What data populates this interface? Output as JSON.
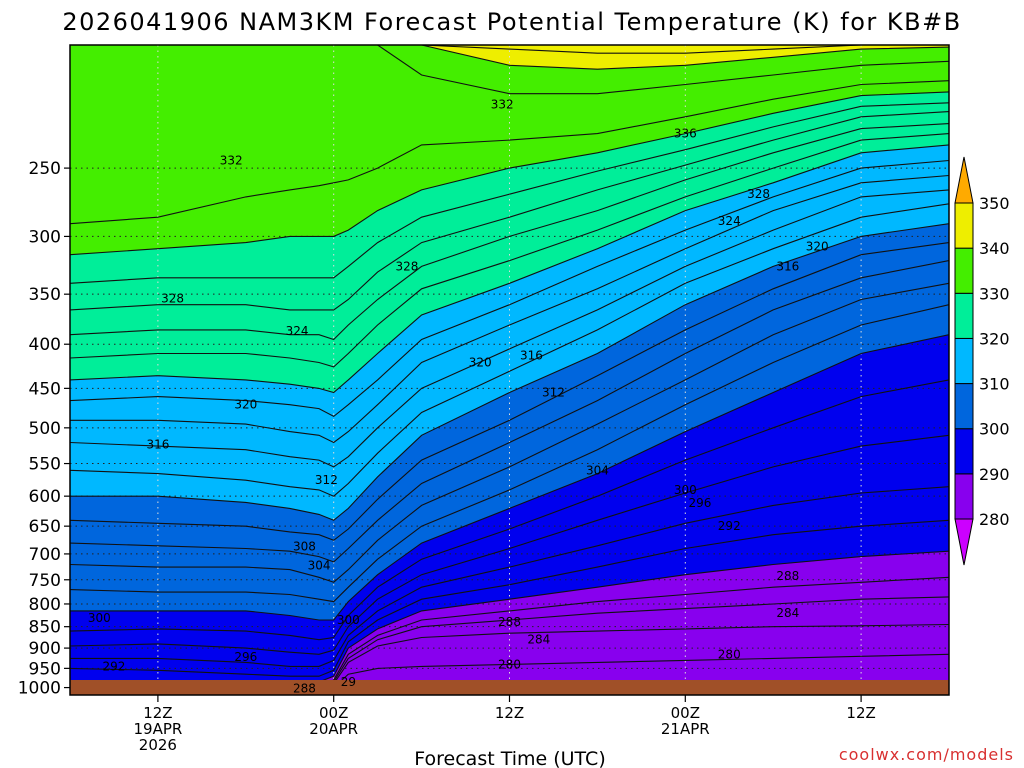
{
  "chart_data": {
    "type": "heatmap",
    "title": "2026041906 NAM3KM Forecast Potential Temperature (K) for KB#B",
    "xlabel": "Forecast Time (UTC)",
    "ylabel": "",
    "credit": "coolwx.com/models",
    "x_unit": "hours since 2026-04-19 06Z",
    "xlim": [
      0,
      60
    ],
    "y_unit": "hPa",
    "ylim": [
      1020,
      180
    ],
    "y_scale": "log-pressure",
    "y_ticks": [
      250,
      300,
      350,
      400,
      450,
      500,
      550,
      600,
      650,
      700,
      750,
      800,
      850,
      900,
      950,
      1000
    ],
    "y_tick_labels": [
      "250",
      "300",
      "350",
      "400",
      "450",
      "500",
      "550",
      "600",
      "650",
      "700",
      "750",
      "800",
      "850",
      "900",
      "950",
      "1000"
    ],
    "x_ticks": [
      {
        "hour": 6,
        "lines": [
          "12Z",
          "19APR",
          "2026"
        ]
      },
      {
        "hour": 18,
        "lines": [
          "00Z",
          "20APR"
        ]
      },
      {
        "hour": 30,
        "lines": [
          "12Z"
        ]
      },
      {
        "hour": 42,
        "lines": [
          "00Z",
          "21APR"
        ]
      },
      {
        "hour": 54,
        "lines": [
          "12Z"
        ]
      }
    ],
    "grid": "dotted",
    "colorbar": {
      "levels": [
        280,
        290,
        300,
        310,
        320,
        330,
        340,
        350
      ],
      "labels": [
        "280",
        "290",
        "300",
        "310",
        "320",
        "330",
        "340",
        "350"
      ],
      "colors": [
        "#cc00ff",
        "#8800ee",
        "#0000ee",
        "#0066dd",
        "#00b8ff",
        "#00ee99",
        "#44ee00",
        "#eeee00",
        "#ffaa00"
      ],
      "placement": "right",
      "extend": "both"
    },
    "contour_interval": 2,
    "time_hours": [
      0,
      6,
      12,
      15,
      17,
      18,
      19,
      21,
      24,
      30,
      36,
      42,
      48,
      54,
      60
    ],
    "isentrope_heights_hPa": [
      {
        "theta": 282,
        "p": [
          1020,
          1020,
          1020,
          1020,
          1020,
          1000,
          965,
          950,
          945,
          940,
          935,
          930,
          925,
          920,
          915
        ]
      },
      {
        "theta": 284,
        "p": [
          1020,
          1020,
          1020,
          1020,
          1020,
          990,
          935,
          895,
          875,
          865,
          860,
          855,
          850,
          848,
          845
        ]
      },
      {
        "theta": 286,
        "p": [
          1020,
          1020,
          1020,
          1020,
          1010,
          985,
          925,
          880,
          850,
          835,
          820,
          810,
          800,
          790,
          785
        ]
      },
      {
        "theta": 288,
        "p": [
          1020,
          1020,
          1010,
          1005,
          1000,
          980,
          915,
          870,
          835,
          815,
          795,
          780,
          765,
          755,
          745
        ]
      },
      {
        "theta": 290,
        "p": [
          1020,
          1005,
          990,
          985,
          985,
          970,
          900,
          855,
          815,
          790,
          765,
          740,
          720,
          705,
          695
        ]
      },
      {
        "theta": 292,
        "p": [
          950,
          955,
          965,
          970,
          970,
          955,
          885,
          835,
          790,
          760,
          725,
          690,
          665,
          650,
          640
        ]
      },
      {
        "theta": 294,
        "p": [
          925,
          925,
          935,
          945,
          945,
          930,
          870,
          815,
          765,
          725,
          685,
          645,
          615,
          595,
          585
        ]
      },
      {
        "theta": 296,
        "p": [
          895,
          890,
          900,
          910,
          915,
          905,
          850,
          790,
          740,
          690,
          640,
          595,
          555,
          525,
          510
        ]
      },
      {
        "theta": 298,
        "p": [
          860,
          855,
          860,
          870,
          880,
          875,
          825,
          765,
          710,
          655,
          600,
          545,
          500,
          460,
          440
        ]
      },
      {
        "theta": 300,
        "p": [
          815,
          815,
          815,
          825,
          835,
          835,
          795,
          740,
          680,
          620,
          565,
          505,
          455,
          410,
          390
        ]
      },
      {
        "theta": 302,
        "p": [
          770,
          775,
          775,
          780,
          790,
          795,
          765,
          710,
          650,
          590,
          530,
          470,
          420,
          380,
          360
        ]
      },
      {
        "theta": 304,
        "p": [
          720,
          725,
          725,
          730,
          745,
          755,
          730,
          675,
          615,
          555,
          495,
          440,
          390,
          355,
          340
        ]
      },
      {
        "theta": 306,
        "p": [
          680,
          685,
          690,
          695,
          705,
          715,
          690,
          640,
          580,
          520,
          465,
          410,
          365,
          335,
          320
        ]
      },
      {
        "theta": 308,
        "p": [
          640,
          645,
          650,
          660,
          665,
          675,
          655,
          605,
          545,
          490,
          435,
          385,
          345,
          315,
          305
        ]
      },
      {
        "theta": 310,
        "p": [
          600,
          600,
          610,
          620,
          630,
          640,
          620,
          570,
          510,
          455,
          410,
          360,
          325,
          300,
          290
        ]
      },
      {
        "theta": 312,
        "p": [
          560,
          565,
          575,
          585,
          590,
          600,
          580,
          535,
          480,
          430,
          385,
          340,
          310,
          285,
          275
        ]
      },
      {
        "theta": 314,
        "p": [
          520,
          525,
          530,
          540,
          545,
          555,
          540,
          500,
          450,
          405,
          365,
          325,
          295,
          270,
          265
        ]
      },
      {
        "theta": 316,
        "p": [
          490,
          490,
          495,
          505,
          510,
          520,
          505,
          470,
          420,
          380,
          345,
          310,
          280,
          260,
          255
        ]
      },
      {
        "theta": 318,
        "p": [
          465,
          460,
          465,
          470,
          475,
          485,
          470,
          440,
          395,
          360,
          325,
          295,
          270,
          250,
          245
        ]
      },
      {
        "theta": 320,
        "p": [
          440,
          435,
          440,
          445,
          450,
          455,
          440,
          410,
          370,
          340,
          310,
          280,
          260,
          240,
          235
        ]
      },
      {
        "theta": 322,
        "p": [
          415,
          410,
          410,
          415,
          420,
          425,
          410,
          380,
          345,
          320,
          295,
          270,
          250,
          232,
          228
        ]
      },
      {
        "theta": 324,
        "p": [
          390,
          385,
          385,
          390,
          390,
          395,
          380,
          355,
          325,
          300,
          280,
          258,
          240,
          225,
          222
        ]
      },
      {
        "theta": 326,
        "p": [
          365,
          360,
          360,
          365,
          365,
          365,
          355,
          330,
          305,
          285,
          265,
          248,
          232,
          218,
          215
        ]
      },
      {
        "theta": 328,
        "p": [
          340,
          335,
          335,
          335,
          335,
          335,
          325,
          305,
          285,
          268,
          252,
          238,
          224,
          212,
          210
        ]
      },
      {
        "theta": 330,
        "p": [
          315,
          310,
          305,
          300,
          300,
          300,
          295,
          280,
          265,
          250,
          240,
          228,
          216,
          206,
          204
        ]
      },
      {
        "theta": 332,
        "p": [
          290,
          285,
          270,
          265,
          262,
          260,
          258,
          250,
          235,
          232,
          228,
          218,
          208,
          200,
          198
        ]
      },
      {
        "theta": 336,
        "p": [
          180,
          180,
          180,
          180,
          180,
          180,
          180,
          180,
          195,
          205,
          205,
          200,
          195,
          190,
          188
        ]
      },
      {
        "theta": 340,
        "p": [
          180,
          180,
          180,
          180,
          180,
          180,
          180,
          180,
          180,
          190,
          192,
          190,
          186,
          182,
          181
        ]
      },
      {
        "theta": 344,
        "p": [
          180,
          180,
          180,
          180,
          180,
          180,
          180,
          180,
          180,
          182,
          184,
          184,
          182,
          180,
          180
        ]
      },
      {
        "theta": 348,
        "p": [
          180,
          180,
          180,
          180,
          180,
          180,
          180,
          180,
          180,
          180,
          180,
          180,
          180,
          180,
          180
        ]
      }
    ],
    "contour_labels": [
      {
        "text": "332",
        "hour": 29.5,
        "p": 211
      },
      {
        "text": "332",
        "hour": 11,
        "p": 245
      },
      {
        "text": "336",
        "hour": 42,
        "p": 228
      },
      {
        "text": "328",
        "hour": 47,
        "p": 268
      },
      {
        "text": "324",
        "hour": 45,
        "p": 288
      },
      {
        "text": "320",
        "hour": 51,
        "p": 308
      },
      {
        "text": "316",
        "hour": 49,
        "p": 325
      },
      {
        "text": "328",
        "hour": 7,
        "p": 354
      },
      {
        "text": "328",
        "hour": 23,
        "p": 325
      },
      {
        "text": "324",
        "hour": 15.5,
        "p": 386
      },
      {
        "text": "320",
        "hour": 28,
        "p": 420
      },
      {
        "text": "316",
        "hour": 31.5,
        "p": 412
      },
      {
        "text": "312",
        "hour": 33,
        "p": 455
      },
      {
        "text": "320",
        "hour": 12,
        "p": 470
      },
      {
        "text": "316",
        "hour": 6,
        "p": 523
      },
      {
        "text": "312",
        "hour": 17.5,
        "p": 575
      },
      {
        "text": "304",
        "hour": 36,
        "p": 560
      },
      {
        "text": "300",
        "hour": 42,
        "p": 590
      },
      {
        "text": "296",
        "hour": 43,
        "p": 611
      },
      {
        "text": "292",
        "hour": 45,
        "p": 650
      },
      {
        "text": "308",
        "hour": 16,
        "p": 686
      },
      {
        "text": "304",
        "hour": 17,
        "p": 722
      },
      {
        "text": "288",
        "hour": 49,
        "p": 742
      },
      {
        "text": "284",
        "hour": 49,
        "p": 820
      },
      {
        "text": "300",
        "hour": 2,
        "p": 830
      },
      {
        "text": "300",
        "hour": 19,
        "p": 835
      },
      {
        "text": "288",
        "hour": 30,
        "p": 840
      },
      {
        "text": "284",
        "hour": 32,
        "p": 880
      },
      {
        "text": "280",
        "hour": 30,
        "p": 940
      },
      {
        "text": "280",
        "hour": 45,
        "p": 915
      },
      {
        "text": "296",
        "hour": 12,
        "p": 922
      },
      {
        "text": "292",
        "hour": 3,
        "p": 945
      },
      {
        "text": "29",
        "hour": 19,
        "p": 985
      },
      {
        "text": "288",
        "hour": 16,
        "p": 1003
      }
    ],
    "ground_color": "#a05028"
  }
}
